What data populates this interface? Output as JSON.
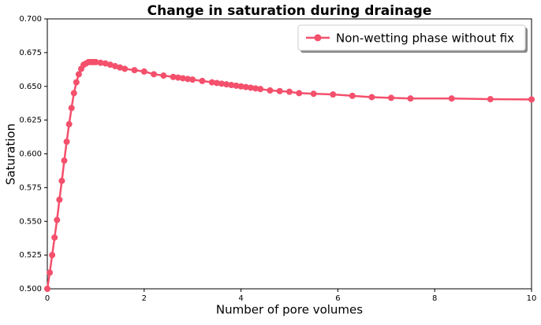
{
  "chart_data": {
    "type": "line",
    "title": "Change in saturation during drainage",
    "x_label": "Number of pore volumes",
    "y_label": "Saturation",
    "xlim": [
      0,
      10
    ],
    "xticks": [
      0,
      2,
      4,
      6,
      8,
      10
    ],
    "ylim": [
      0.5,
      0.7
    ],
    "yticks": [
      {
        "value": 0.5,
        "label": "0.500"
      },
      {
        "value": 0.525,
        "label": "0.525"
      },
      {
        "value": 0.55,
        "label": "0.550"
      },
      {
        "value": 0.575,
        "label": "0.575"
      },
      {
        "value": 0.6,
        "label": "0.600"
      },
      {
        "value": 0.625,
        "label": "0.625"
      },
      {
        "value": 0.65,
        "label": "0.650"
      },
      {
        "value": 0.675,
        "label": "0.675"
      },
      {
        "value": 0.7,
        "label": "0.700"
      }
    ],
    "legend": "upper right",
    "series": [
      {
        "name": "Non-wetting phase without fix",
        "color": "#f4506c",
        "x": [
          0,
          0.05,
          0.1,
          0.15,
          0.2,
          0.25,
          0.3,
          0.35,
          0.4,
          0.45,
          0.5,
          0.55,
          0.6,
          0.65,
          0.7,
          0.75,
          0.8,
          0.85,
          0.9,
          0.95,
          1.0,
          1.1,
          1.2,
          1.3,
          1.4,
          1.5,
          1.6,
          1.8,
          2.0,
          2.2,
          2.4,
          2.6,
          2.7,
          2.8,
          2.9,
          3.0,
          3.2,
          3.4,
          3.5,
          3.6,
          3.7,
          3.8,
          3.9,
          4.0,
          4.1,
          4.2,
          4.3,
          4.4,
          4.6,
          4.8,
          5.0,
          5.2,
          5.5,
          5.9,
          6.3,
          6.7,
          7.1,
          7.5,
          8.35,
          9.15,
          10
        ],
        "values": [
          0.5,
          0.512,
          0.525,
          0.538,
          0.551,
          0.566,
          0.58,
          0.595,
          0.609,
          0.622,
          0.634,
          0.645,
          0.653,
          0.659,
          0.663,
          0.666,
          0.667,
          0.668,
          0.668,
          0.668,
          0.668,
          0.6675,
          0.667,
          0.666,
          0.665,
          0.664,
          0.663,
          0.662,
          0.661,
          0.659,
          0.658,
          0.657,
          0.6565,
          0.656,
          0.6555,
          0.655,
          0.654,
          0.653,
          0.6525,
          0.652,
          0.6515,
          0.651,
          0.6505,
          0.65,
          0.6495,
          0.649,
          0.6485,
          0.648,
          0.647,
          0.6465,
          0.646,
          0.645,
          0.6445,
          0.644,
          0.643,
          0.642,
          0.6415,
          0.641,
          0.641,
          0.6405,
          0.6403
        ]
      }
    ]
  }
}
